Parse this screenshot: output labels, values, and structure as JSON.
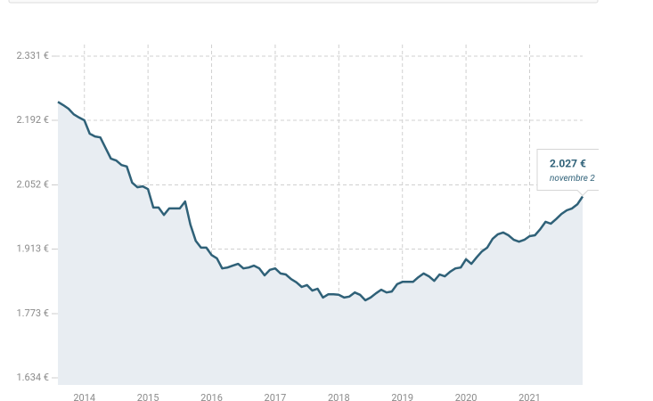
{
  "chart_data": {
    "type": "line",
    "categories": [
      null,
      null,
      null,
      null,
      null,
      "2014",
      null,
      null,
      null,
      null,
      null,
      null,
      null,
      null,
      null,
      null,
      null,
      "2015",
      null,
      null,
      null,
      null,
      null,
      null,
      null,
      null,
      null,
      null,
      null,
      "2016",
      null,
      null,
      null,
      null,
      null,
      null,
      null,
      null,
      null,
      null,
      null,
      "2017",
      null,
      null,
      null,
      null,
      null,
      null,
      null,
      null,
      null,
      null,
      null,
      "2018",
      null,
      null,
      null,
      null,
      null,
      null,
      null,
      null,
      null,
      null,
      null,
      "2019",
      null,
      null,
      null,
      null,
      null,
      null,
      null,
      null,
      null,
      null,
      null,
      "2020",
      null,
      null,
      null,
      null,
      null,
      null,
      null,
      null,
      null,
      null,
      null,
      "2021",
      null,
      null,
      null,
      null,
      null,
      null,
      null,
      null,
      null,
      null
    ],
    "series": [
      {
        "color": "#2f6178",
        "fill": "#e8edf2",
        "values": [
          2232,
          2225,
          2217,
          2205,
          2198,
          2192,
          2163,
          2157,
          2155,
          2132,
          2109,
          2105,
          2095,
          2092,
          2057,
          2047,
          2049,
          2043,
          2003,
          2003,
          1987,
          2001,
          2001,
          2001,
          2016,
          1966,
          1931,
          1916,
          1916,
          1900,
          1893,
          1871,
          1873,
          1877,
          1881,
          1871,
          1873,
          1877,
          1871,
          1856,
          1868,
          1871,
          1860,
          1858,
          1848,
          1841,
          1831,
          1835,
          1823,
          1827,
          1808,
          1815,
          1815,
          1814,
          1808,
          1810,
          1819,
          1814,
          1802,
          1808,
          1817,
          1825,
          1819,
          1821,
          1837,
          1842,
          1842,
          1842,
          1852,
          1860,
          1854,
          1844,
          1858,
          1854,
          1864,
          1871,
          1873,
          1891,
          1881,
          1895,
          1908,
          1916,
          1935,
          1945,
          1949,
          1943,
          1933,
          1929,
          1933,
          1941,
          1943,
          1956,
          1972,
          1968,
          1978,
          1989,
          1997,
          2001,
          2010,
          2027
        ],
        "value_labels": [
          null,
          null,
          null,
          null,
          null,
          null,
          null,
          null,
          null,
          null,
          null,
          null,
          null,
          null,
          null,
          null,
          null,
          null,
          null,
          null,
          null,
          null,
          null,
          null,
          null,
          null,
          null,
          null,
          null,
          null,
          null,
          null,
          null,
          null,
          null,
          null,
          null,
          null,
          null,
          null,
          null,
          null,
          null,
          null,
          null,
          null,
          null,
          null,
          null,
          null,
          null,
          null,
          null,
          null,
          null,
          null,
          null,
          null,
          null,
          null,
          null,
          null,
          null,
          null,
          null,
          null,
          null,
          null,
          null,
          null,
          null,
          null,
          null,
          null,
          null,
          null,
          null,
          null,
          null,
          null,
          null,
          null,
          null,
          null,
          null,
          null,
          null,
          null,
          null,
          null,
          null,
          null,
          null,
          null,
          null,
          null,
          null,
          null,
          null,
          "2.027 €"
        ]
      }
    ],
    "tooltip_date": "novembre 2",
    "ylim": [
      1634,
      2331
    ],
    "yticks": [
      {
        "value": 1634,
        "label": "1.634 €"
      },
      {
        "value": 1773,
        "label": "1.773 €"
      },
      {
        "value": 1913,
        "label": "1.913 €"
      },
      {
        "value": 2052,
        "label": "2.052 €"
      },
      {
        "value": 2192,
        "label": "2.192 €"
      },
      {
        "value": 2331,
        "label": "2.331 €"
      }
    ],
    "grid": true
  }
}
